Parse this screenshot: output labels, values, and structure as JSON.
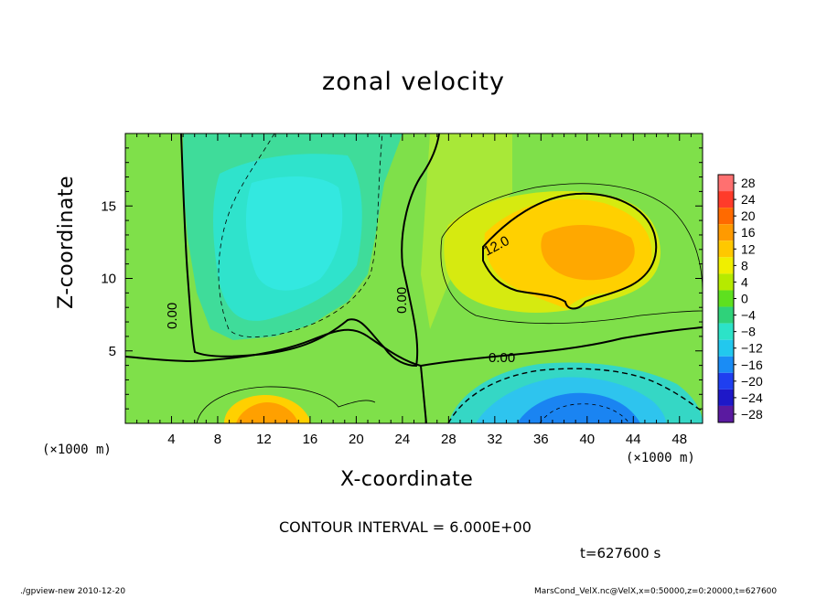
{
  "chart_data": {
    "type": "heatmap",
    "subtype": "filled contour",
    "title": "zonal velocity",
    "xlabel": "X-coordinate",
    "ylabel": "Z-coordinate",
    "x_unit_label": "(×1000 m)",
    "xlim": [
      0,
      50
    ],
    "ylim": [
      0,
      20
    ],
    "x_ticks": [
      4,
      8,
      12,
      16,
      20,
      24,
      28,
      32,
      36,
      40,
      44,
      48
    ],
    "y_ticks": [
      5,
      10,
      15
    ],
    "colorbar": {
      "levels": [
        28,
        24,
        20,
        16,
        12,
        8,
        4,
        0,
        -4,
        -8,
        -12,
        -16,
        -20,
        -24,
        -28
      ],
      "colors": [
        "#ff7070",
        "#ff3b2a",
        "#ff6a00",
        "#ff9a00",
        "#ffc800",
        "#f0ef00",
        "#b6ea00",
        "#5ee01f",
        "#2fd27a",
        "#2ce3c8",
        "#22c8ee",
        "#1a8cf5",
        "#1f3ff0",
        "#1e18c8",
        "#5a1aa0"
      ]
    },
    "contour_labels": [
      "12.0",
      "0.00",
      "0.00",
      "0.00"
    ],
    "contour_interval": "CONTOUR INTERVAL = 6.000E+00",
    "time": "t=627600 s",
    "features": [
      {
        "name": "positive maximum",
        "x": 40,
        "y": 12,
        "value": 14
      },
      {
        "name": "negative region upper-left",
        "x": 14,
        "y": 11,
        "value": -8
      },
      {
        "name": "negative minimum",
        "x": 39,
        "y": 1,
        "value": -16
      },
      {
        "name": "positive surface maximum",
        "x": 12,
        "y": 1,
        "value": 14
      }
    ]
  },
  "footer": {
    "left": "./gpview-new  2010-12-20",
    "right": "MarsCond_VelX.nc@VelX,x=0:50000,z=0:20000,t=627600"
  }
}
